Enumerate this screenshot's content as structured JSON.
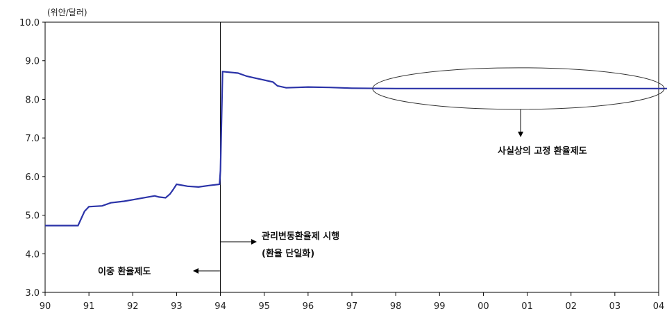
{
  "chart_data": {
    "type": "line",
    "unit_label": "(위안/달러)",
    "ylim": [
      3.0,
      10.0
    ],
    "xlim": [
      1990,
      2004
    ],
    "y_ticks": [
      "10.0",
      "9.0",
      "8.0",
      "7.0",
      "6.0",
      "5.0",
      "4.0",
      "3.0"
    ],
    "x_ticks": [
      "90",
      "91",
      "92",
      "93",
      "94",
      "95",
      "96",
      "97",
      "98",
      "99",
      "00",
      "01",
      "02",
      "03",
      "04"
    ],
    "grid": false,
    "series": [
      {
        "color": "#2b33a8",
        "x": [
          1990.0,
          1990.75,
          1990.9,
          1991.0,
          1991.3,
          1991.5,
          1991.8,
          1992.0,
          1992.3,
          1992.5,
          1992.6,
          1992.75,
          1992.85,
          1992.92,
          1993.0,
          1993.25,
          1993.5,
          1993.75,
          1993.98,
          1994.0,
          1994.05,
          1994.4,
          1994.6,
          1994.8,
          1995.0,
          1995.2,
          1995.3,
          1995.5,
          1996.0,
          1996.5,
          1997.0,
          1998.0,
          1999.0,
          2000.0,
          2001.0,
          2002.0,
          2003.0,
          2004.2
        ],
        "values": [
          4.73,
          4.73,
          5.1,
          5.22,
          5.24,
          5.32,
          5.36,
          5.4,
          5.46,
          5.5,
          5.47,
          5.45,
          5.55,
          5.66,
          5.8,
          5.75,
          5.73,
          5.77,
          5.8,
          6.15,
          8.72,
          8.68,
          8.6,
          8.55,
          8.5,
          8.45,
          8.35,
          8.3,
          8.32,
          8.31,
          8.29,
          8.28,
          8.28,
          8.28,
          8.28,
          8.28,
          8.28,
          8.28
        ]
      }
    ],
    "annotations": {
      "fixed_regime": "사실상의 고정 환율제도",
      "managed_float": "관리변동환율제 시행",
      "managed_float_sub": "(환율 단일화)",
      "dual_regime": "이중 환율제도"
    }
  }
}
